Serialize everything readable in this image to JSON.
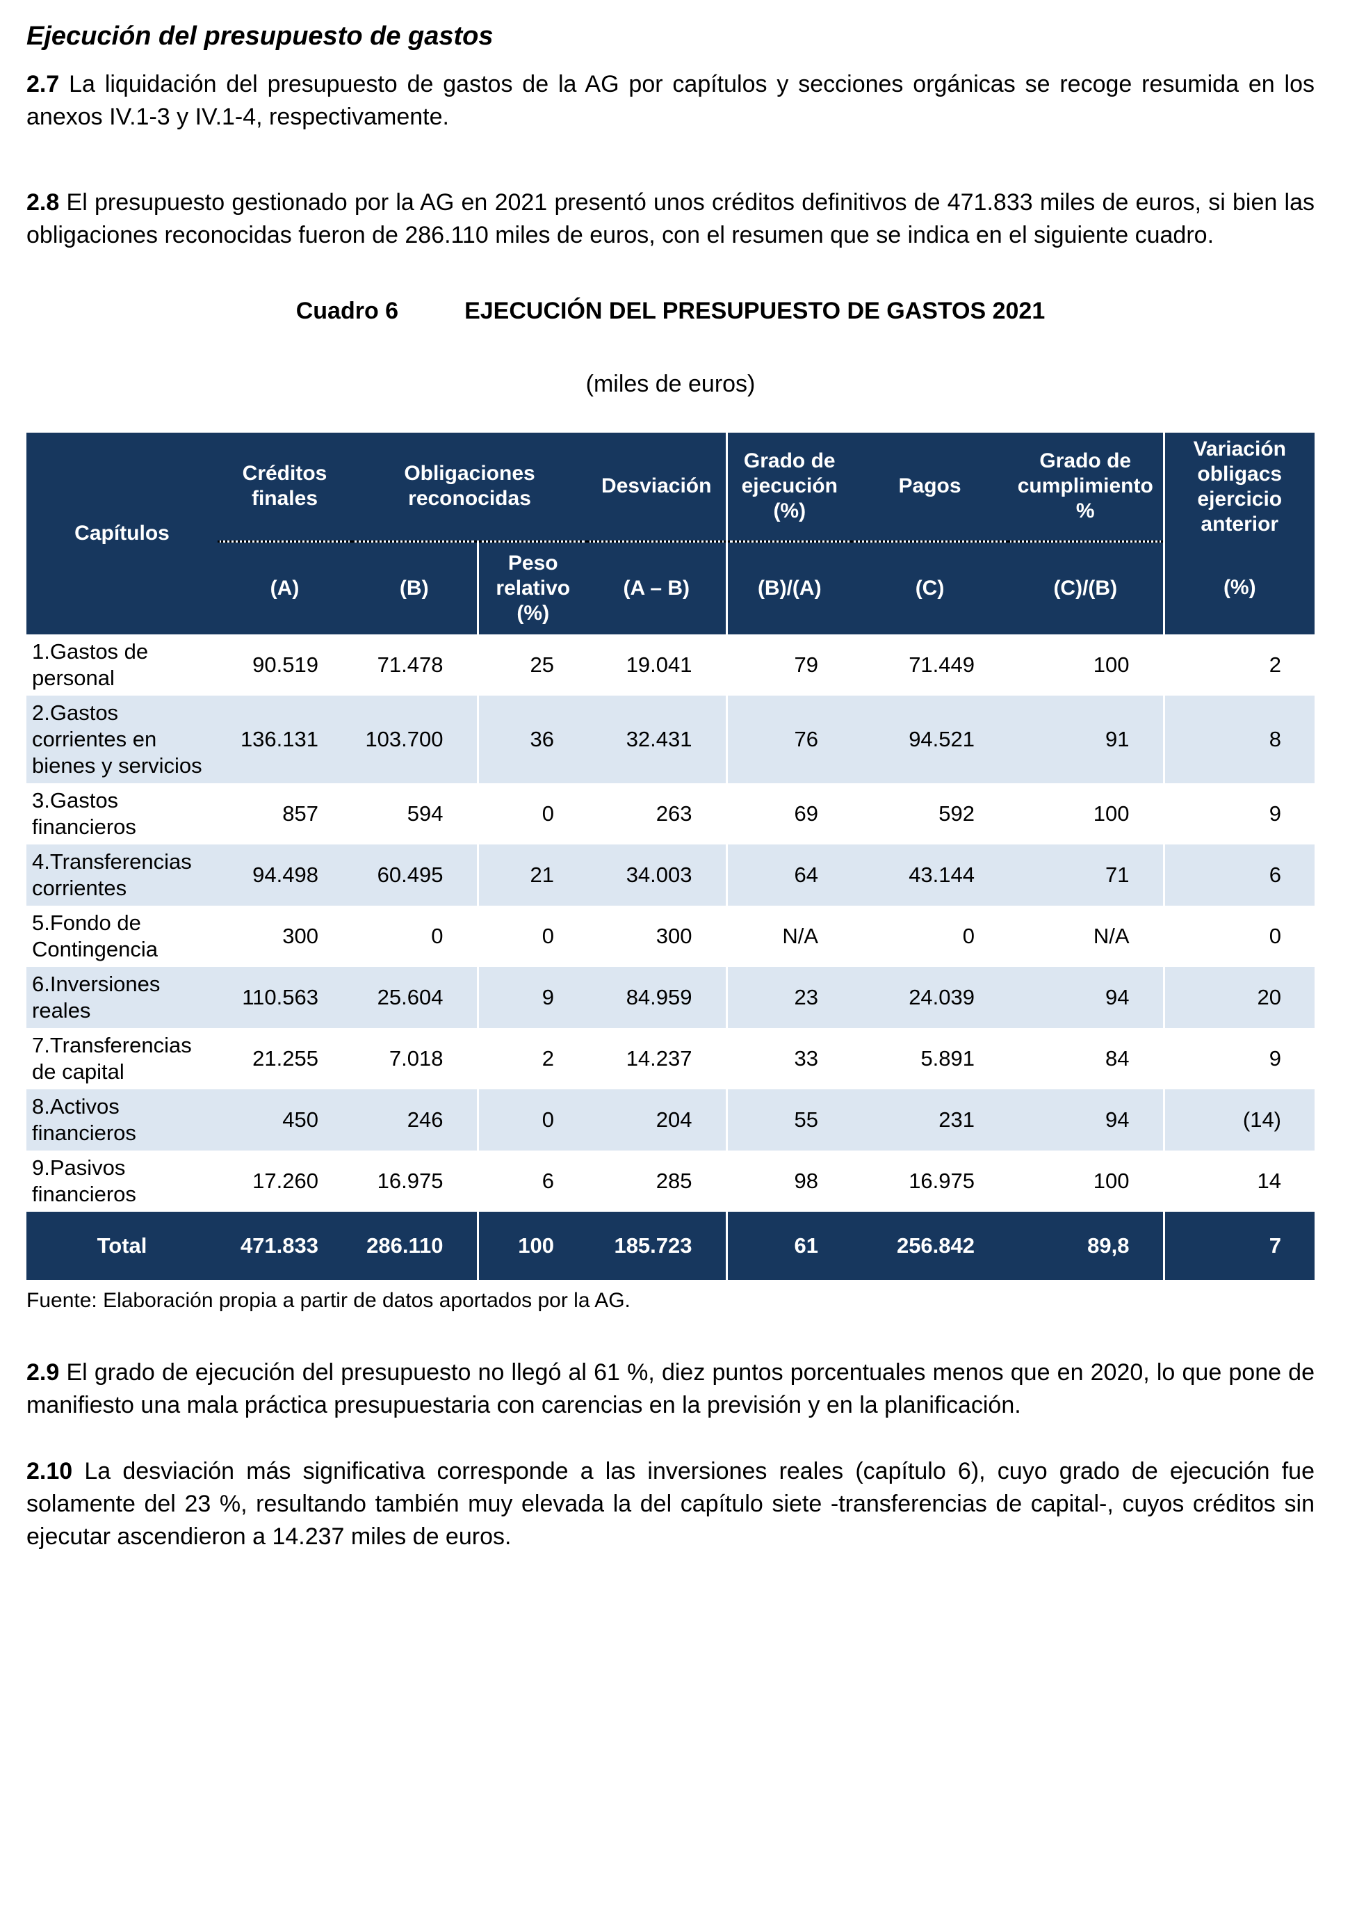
{
  "heading": "Ejecución del presupuesto de gastos",
  "paragraphs": [
    {
      "num": "2.7",
      "text": "La liquidación del presupuesto de gastos de la AG por capítulos y secciones orgánicas se recoge resumida en los anexos IV.1-3 y IV.1-4, respectivamente."
    },
    {
      "num": "2.8",
      "text": "El presupuesto gestionado por la AG en 2021 presentó unos créditos definitivos de 471.833 miles de euros, si bien las obligaciones reconocidas fueron de 286.110 miles de euros, con el resumen que se indica en el siguiente cuadro."
    }
  ],
  "table_caption": {
    "label": "Cuadro 6",
    "title": "EJECUCIÓN DEL PRESUPUESTO DE GASTOS 2021",
    "units": "(miles de euros)"
  },
  "table": {
    "header": {
      "capitulos": "Capítulos",
      "groups": [
        "Créditos finales",
        "Obligaciones reconocidas",
        "Desviación",
        "Grado de ejecución (%)",
        "Pagos",
        "Grado de cumplimiento %",
        "Variación obligacs ejercicio anterior"
      ],
      "subs": [
        "(A)",
        "(B)",
        "Peso relativo (%)",
        "(A – B)",
        "(B)/(A)",
        "(C)",
        "(C)/(B)",
        "(%)"
      ]
    },
    "rows": [
      {
        "capitulo": "1.Gastos de personal",
        "values": [
          "90.519",
          "71.478",
          "25",
          "19.041",
          "79",
          "71.449",
          "100",
          "2"
        ]
      },
      {
        "capitulo": "2.Gastos corrientes en bienes y servicios",
        "values": [
          "136.131",
          "103.700",
          "36",
          "32.431",
          "76",
          "94.521",
          "91",
          "8"
        ]
      },
      {
        "capitulo": "3.Gastos financieros",
        "values": [
          "857",
          "594",
          "0",
          "263",
          "69",
          "592",
          "100",
          "9"
        ]
      },
      {
        "capitulo": "4.Transferencias corrientes",
        "values": [
          "94.498",
          "60.495",
          "21",
          "34.003",
          "64",
          "43.144",
          "71",
          "6"
        ]
      },
      {
        "capitulo": "5.Fondo de Contingencia",
        "values": [
          "300",
          "0",
          "0",
          "300",
          "N/A",
          "0",
          "N/A",
          "0"
        ]
      },
      {
        "capitulo": "6.Inversiones reales",
        "values": [
          "110.563",
          "25.604",
          "9",
          "84.959",
          "23",
          "24.039",
          "94",
          "20"
        ]
      },
      {
        "capitulo": "7.Transferencias de capital",
        "values": [
          "21.255",
          "7.018",
          "2",
          "14.237",
          "33",
          "5.891",
          "84",
          "9"
        ]
      },
      {
        "capitulo": "8.Activos financieros",
        "values": [
          "450",
          "246",
          "0",
          "204",
          "55",
          "231",
          "94",
          "(14)"
        ]
      },
      {
        "capitulo": "9.Pasivos financieros",
        "values": [
          "17.260",
          "16.975",
          "6",
          "285",
          "98",
          "16.975",
          "100",
          "14"
        ]
      }
    ],
    "total": {
      "label": "Total",
      "values": [
        "471.833",
        "286.110",
        "100",
        "185.723",
        "61",
        "256.842",
        "89,8",
        "7"
      ]
    }
  },
  "source_note": "Fuente: Elaboración propia a partir de datos aportados por la AG.",
  "paragraphs_after": [
    {
      "num": "2.9",
      "text": "El grado de ejecución del presupuesto no llegó al 61 %, diez puntos porcentuales menos que en 2020, lo que pone de manifiesto una mala práctica presupuestaria con carencias en la previsión y en la planificación."
    },
    {
      "num": "2.10",
      "text": "La desviación más significativa corresponde a las inversiones reales (capítulo 6), cuyo grado de ejecución fue solamente del 23 %, resultando también muy elevada la del capítulo siete -transferencias de capital-, cuyos créditos sin ejecutar ascendieron a 14.237 miles de euros."
    }
  ],
  "colors": {
    "header_bg": "#17375E",
    "stripe_bg": "#DCE6F1",
    "total_bg": "#17375E",
    "header_text": "#FFFFFF",
    "body_text": "#000000"
  }
}
